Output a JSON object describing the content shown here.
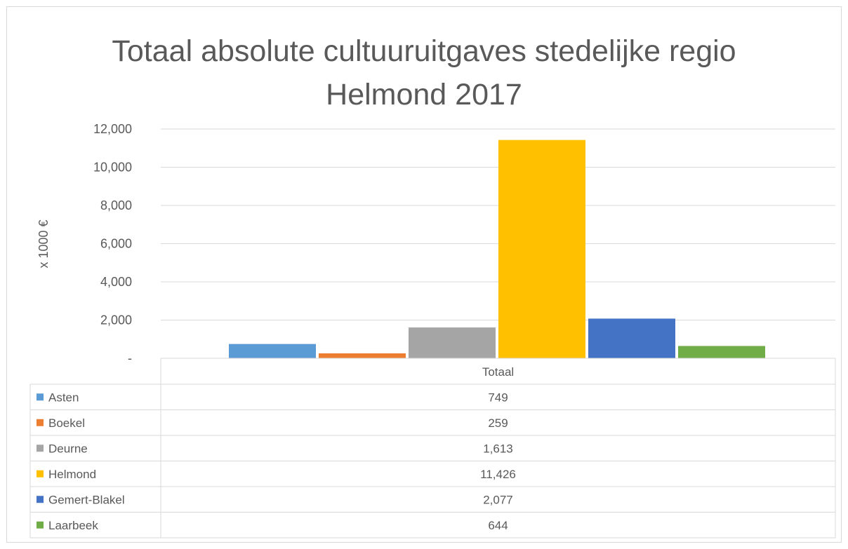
{
  "chart_data": {
    "type": "bar",
    "title_lines": [
      "Totaal absolute cultuuruitgaves stedelijke regio",
      "Helmond 2017"
    ],
    "ylabel": "x 1000 €",
    "xlabel": "",
    "category": "Totaal",
    "ylim": [
      0,
      12000
    ],
    "yticks": [
      {
        "value": 0,
        "label": "-"
      },
      {
        "value": 2000,
        "label": "2,000"
      },
      {
        "value": 4000,
        "label": "4,000"
      },
      {
        "value": 6000,
        "label": "6,000"
      },
      {
        "value": 8000,
        "label": "8,000"
      },
      {
        "value": 10000,
        "label": "10,000"
      },
      {
        "value": 12000,
        "label": "12,000"
      }
    ],
    "grid": true,
    "legend": "data-table",
    "series": [
      {
        "name": "Asten",
        "value": 749,
        "label": "749",
        "color": "#5b9bd5"
      },
      {
        "name": "Boekel",
        "value": 259,
        "label": "259",
        "color": "#ed7d31"
      },
      {
        "name": "Deurne",
        "value": 1613,
        "label": "1,613",
        "color": "#a5a5a5"
      },
      {
        "name": "Helmond",
        "value": 11426,
        "label": "11,426",
        "color": "#ffc000"
      },
      {
        "name": "Gemert-Blakel",
        "value": 2077,
        "label": "2,077",
        "color": "#4472c4"
      },
      {
        "name": "Laarbeek",
        "value": 644,
        "label": "644",
        "color": "#70ad47"
      }
    ]
  }
}
